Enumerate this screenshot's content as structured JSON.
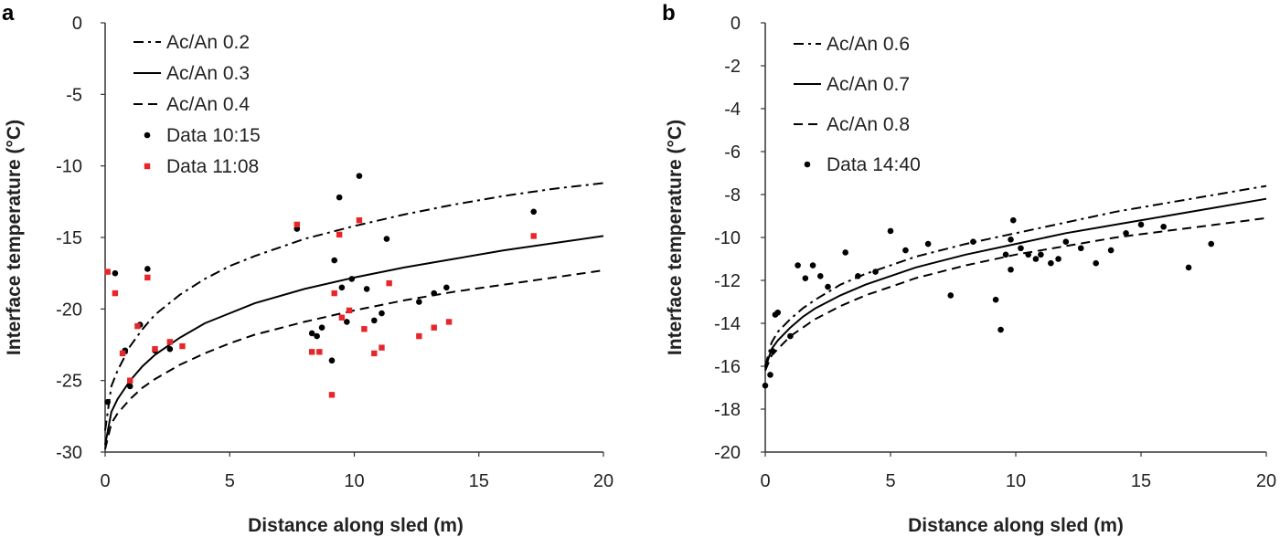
{
  "chart_data": [
    {
      "panel_label": "a",
      "type": "scatter",
      "xlabel": "Distance along sled (m)",
      "ylabel": "Interface temperature (°C)",
      "xlim": [
        0,
        20
      ],
      "ylim": [
        -30,
        0
      ],
      "xticks": [
        0,
        5,
        10,
        15,
        20
      ],
      "yticks": [
        0,
        -5,
        -10,
        -15,
        -20,
        -25,
        -30
      ],
      "grid": false,
      "legend_position": "top-left",
      "series": [
        {
          "name": "Ac/An 0.2",
          "kind": "line",
          "style": "dashdot",
          "color": "#000000",
          "x": [
            0,
            0.25,
            0.5,
            1,
            1.5,
            2,
            3,
            4,
            5,
            6,
            8,
            10,
            12,
            14,
            16,
            18,
            20
          ],
          "y": [
            -28.5,
            -25.4,
            -24.3,
            -22.6,
            -21.4,
            -20.4,
            -19.0,
            -17.9,
            -17.0,
            -16.3,
            -15.1,
            -14.2,
            -13.4,
            -12.7,
            -12.1,
            -11.6,
            -11.2
          ]
        },
        {
          "name": "Ac/An 0.3",
          "kind": "line",
          "style": "solid",
          "color": "#000000",
          "x": [
            0,
            0.25,
            0.5,
            1,
            1.5,
            2,
            3,
            4,
            5,
            6,
            8,
            10,
            12,
            14,
            16,
            18,
            20
          ],
          "y": [
            -29.5,
            -27.2,
            -26.3,
            -25.0,
            -24.0,
            -23.2,
            -22.0,
            -21.0,
            -20.3,
            -19.6,
            -18.6,
            -17.8,
            -17.1,
            -16.5,
            -15.9,
            -15.4,
            -14.9
          ]
        },
        {
          "name": "Ac/An 0.4",
          "kind": "line",
          "style": "dashed",
          "color": "#000000",
          "x": [
            0,
            0.25,
            0.5,
            1,
            1.5,
            2,
            3,
            4,
            5,
            6,
            8,
            10,
            12,
            14,
            16,
            18,
            20
          ],
          "y": [
            -29.8,
            -28.0,
            -27.3,
            -26.3,
            -25.5,
            -24.9,
            -23.9,
            -23.1,
            -22.4,
            -21.8,
            -20.9,
            -20.1,
            -19.4,
            -18.8,
            -18.3,
            -17.8,
            -17.3
          ]
        },
        {
          "name": "Data 10:15",
          "kind": "scatter",
          "marker": "circle",
          "color": "#000000",
          "x": [
            0.1,
            0.4,
            0.8,
            1.0,
            1.4,
            1.7,
            2.0,
            2.6,
            7.7,
            8.3,
            8.5,
            8.7,
            9.1,
            9.2,
            9.4,
            9.5,
            9.7,
            9.9,
            10.2,
            10.5,
            10.8,
            11.1,
            11.3,
            12.6,
            13.2,
            13.7,
            17.2
          ],
          "y": [
            -26.5,
            -17.5,
            -22.9,
            -25.4,
            -21.1,
            -17.2,
            -22.9,
            -22.8,
            -14.4,
            -21.7,
            -21.9,
            -21.3,
            -23.6,
            -16.6,
            -12.2,
            -18.5,
            -20.9,
            -17.9,
            -10.7,
            -18.6,
            -20.8,
            -20.3,
            -15.1,
            -19.5,
            -18.9,
            -18.5,
            -13.2
          ]
        },
        {
          "name": "Data 11:08",
          "kind": "scatter",
          "marker": "square",
          "color": "#e8262a",
          "x": [
            0.1,
            0.4,
            0.7,
            1.0,
            1.3,
            1.7,
            2.0,
            2.6,
            3.1,
            7.7,
            8.3,
            8.6,
            9.1,
            9.2,
            9.4,
            9.5,
            9.8,
            10.2,
            10.4,
            10.8,
            11.1,
            11.4,
            12.6,
            13.2,
            13.8,
            17.2
          ],
          "y": [
            -17.4,
            -18.9,
            -23.1,
            -25.0,
            -21.2,
            -17.8,
            -22.8,
            -22.3,
            -22.6,
            -14.1,
            -23.0,
            -23.0,
            -26.0,
            -18.9,
            -14.8,
            -20.6,
            -20.1,
            -13.8,
            -21.4,
            -23.1,
            -22.7,
            -18.2,
            -21.9,
            -21.3,
            -20.9,
            -14.9
          ]
        }
      ]
    },
    {
      "panel_label": "b",
      "type": "scatter",
      "xlabel": "Distance along sled (m)",
      "ylabel": "Interface temperature (°C)",
      "xlim": [
        0,
        20
      ],
      "ylim": [
        -20,
        0
      ],
      "xticks": [
        0,
        5,
        10,
        15,
        20
      ],
      "yticks": [
        0,
        -2,
        -4,
        -6,
        -8,
        -10,
        -12,
        -14,
        -16,
        -18,
        -20
      ],
      "grid": false,
      "legend_position": "top-left",
      "series": [
        {
          "name": "Ac/An 0.6",
          "kind": "line",
          "style": "dashdot",
          "color": "#000000",
          "x": [
            0,
            0.25,
            0.5,
            1,
            1.5,
            2,
            3,
            4,
            5,
            6,
            8,
            10,
            12,
            14,
            16,
            18,
            20
          ],
          "y": [
            -16.0,
            -14.9,
            -14.4,
            -13.8,
            -13.3,
            -12.9,
            -12.2,
            -11.7,
            -11.3,
            -10.9,
            -10.3,
            -9.8,
            -9.3,
            -8.8,
            -8.4,
            -8.0,
            -7.6
          ]
        },
        {
          "name": "Ac/An 0.7",
          "kind": "line",
          "style": "solid",
          "color": "#000000",
          "x": [
            0,
            0.25,
            0.5,
            1,
            1.5,
            2,
            3,
            4,
            5,
            6,
            8,
            10,
            12,
            14,
            16,
            18,
            20
          ],
          "y": [
            -16.1,
            -15.2,
            -14.8,
            -14.2,
            -13.7,
            -13.3,
            -12.7,
            -12.2,
            -11.8,
            -11.4,
            -10.8,
            -10.3,
            -9.8,
            -9.4,
            -9.0,
            -8.6,
            -8.2
          ]
        },
        {
          "name": "Ac/An 0.8",
          "kind": "line",
          "style": "dashed",
          "color": "#000000",
          "x": [
            0,
            0.25,
            0.5,
            1,
            1.5,
            2,
            3,
            4,
            5,
            6,
            8,
            10,
            12,
            14,
            16,
            18,
            20
          ],
          "y": [
            -16.2,
            -15.5,
            -15.2,
            -14.6,
            -14.2,
            -13.8,
            -13.2,
            -12.7,
            -12.3,
            -11.9,
            -11.3,
            -10.8,
            -10.4,
            -10.0,
            -9.7,
            -9.4,
            -9.1
          ]
        },
        {
          "name": "Data 14:40",
          "kind": "scatter",
          "marker": "circle",
          "color": "#000000",
          "x": [
            0.0,
            0.2,
            0.3,
            0.4,
            0.5,
            1.0,
            1.3,
            1.6,
            1.9,
            2.2,
            2.5,
            3.2,
            3.7,
            4.4,
            5.0,
            5.6,
            6.5,
            7.4,
            8.3,
            9.2,
            9.4,
            9.6,
            9.8,
            9.8,
            9.9,
            10.2,
            10.5,
            10.8,
            11.0,
            11.4,
            11.7,
            12.0,
            12.6,
            13.2,
            13.8,
            14.4,
            15.0,
            15.9,
            16.9,
            17.8
          ],
          "y": [
            -16.9,
            -16.4,
            -15.3,
            -13.6,
            -13.5,
            -14.6,
            -11.3,
            -11.9,
            -11.3,
            -11.8,
            -12.3,
            -10.7,
            -11.8,
            -11.6,
            -9.7,
            -10.6,
            -10.3,
            -12.7,
            -10.2,
            -12.9,
            -14.3,
            -10.8,
            -11.5,
            -10.1,
            -9.2,
            -10.5,
            -10.8,
            -11.0,
            -10.8,
            -11.2,
            -11.0,
            -10.2,
            -10.5,
            -11.2,
            -10.6,
            -9.8,
            -9.4,
            -9.5,
            -11.4,
            -10.3
          ]
        }
      ]
    }
  ]
}
